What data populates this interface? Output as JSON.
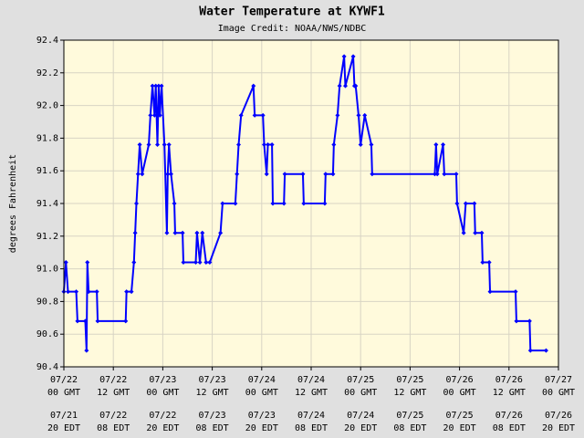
{
  "chart_data": {
    "type": "line",
    "title": "Water Temperature at KYWF1",
    "subtitle": "Image Credit: NOAA/NWS/NDBC",
    "y_label": "degrees Fahrenheit",
    "x": [
      0,
      0.5,
      1,
      3,
      3.3,
      5.2,
      5.5,
      5.7,
      6,
      8,
      8.2,
      15,
      15.2,
      16.4,
      17,
      17.3,
      17.6,
      18,
      18.4,
      19,
      20.6,
      21,
      21.5,
      22,
      22.3,
      22.7,
      23,
      23.3,
      23.7,
      24.4,
      25,
      25.2,
      25.5,
      26,
      26.8,
      27,
      28.8,
      29,
      32,
      32.3,
      33,
      33.6,
      34.5,
      35.4,
      38,
      38.5,
      41.6,
      42,
      42.4,
      43,
      46,
      46.3,
      48.3,
      48.6,
      49.2,
      49.5,
      50.5,
      50.7,
      53.4,
      53.6,
      58,
      58.2,
      63.3,
      63.5,
      65.3,
      65.5,
      66.4,
      66.9,
      68,
      68.3,
      70.2,
      70.5,
      70.8,
      71.5,
      72,
      73,
      74.6,
      74.8,
      90,
      90.3,
      90.6,
      92,
      92.3,
      95.2,
      95.4,
      97,
      97.5,
      99.6,
      99.8,
      101.4,
      101.6,
      103.2,
      103.4,
      109.6,
      109.8,
      113,
      113.2,
      117
    ],
    "series": [
      {
        "name": "Water Temperature",
        "color": "#0000ff",
        "values": [
          90.86,
          91.04,
          90.86,
          90.86,
          90.68,
          90.68,
          90.5,
          91.04,
          90.86,
          90.86,
          90.68,
          90.68,
          90.86,
          90.86,
          91.04,
          91.22,
          91.4,
          91.58,
          91.76,
          91.58,
          91.76,
          91.94,
          92.12,
          91.94,
          92.12,
          91.76,
          92.12,
          91.94,
          92.12,
          91.76,
          91.22,
          91.58,
          91.76,
          91.58,
          91.4,
          91.22,
          91.22,
          91.04,
          91.04,
          91.22,
          91.04,
          91.22,
          91.04,
          91.04,
          91.22,
          91.4,
          91.4,
          91.58,
          91.76,
          91.94,
          92.12,
          91.94,
          91.94,
          91.76,
          91.58,
          91.76,
          91.76,
          91.4,
          91.4,
          91.58,
          91.58,
          91.4,
          91.4,
          91.58,
          91.58,
          91.76,
          91.94,
          92.12,
          92.3,
          92.12,
          92.3,
          92.12,
          92.12,
          91.94,
          91.76,
          91.94,
          91.76,
          91.58,
          91.58,
          91.76,
          91.58,
          91.76,
          91.58,
          91.58,
          91.4,
          91.22,
          91.4,
          91.4,
          91.22,
          91.22,
          91.04,
          91.04,
          90.86,
          90.86,
          90.68,
          90.68,
          90.5,
          90.5
        ]
      }
    ],
    "xlim": [
      0,
      120
    ],
    "xticks": [
      {
        "value": 0,
        "label": [
          "07/22",
          "00 GMT"
        ]
      },
      {
        "value": 12,
        "label": [
          "07/22",
          "12 GMT"
        ]
      },
      {
        "value": 24,
        "label": [
          "07/23",
          "00 GMT"
        ]
      },
      {
        "value": 36,
        "label": [
          "07/23",
          "12 GMT"
        ]
      },
      {
        "value": 48,
        "label": [
          "07/24",
          "00 GMT"
        ]
      },
      {
        "value": 60,
        "label": [
          "07/24",
          "12 GMT"
        ]
      },
      {
        "value": 72,
        "label": [
          "07/25",
          "00 GMT"
        ]
      },
      {
        "value": 84,
        "label": [
          "07/25",
          "12 GMT"
        ]
      },
      {
        "value": 96,
        "label": [
          "07/26",
          "00 GMT"
        ]
      },
      {
        "value": 108,
        "label": [
          "07/26",
          "12 GMT"
        ]
      },
      {
        "value": 120,
        "label": [
          "07/27",
          "00 GMT"
        ]
      }
    ],
    "x2ticks": [
      {
        "value": 0,
        "label": [
          "07/21",
          "20 EDT"
        ]
      },
      {
        "value": 12,
        "label": [
          "07/22",
          "08 EDT"
        ]
      },
      {
        "value": 24,
        "label": [
          "07/22",
          "20 EDT"
        ]
      },
      {
        "value": 36,
        "label": [
          "07/23",
          "08 EDT"
        ]
      },
      {
        "value": 48,
        "label": [
          "07/23",
          "20 EDT"
        ]
      },
      {
        "value": 60,
        "label": [
          "07/24",
          "08 EDT"
        ]
      },
      {
        "value": 72,
        "label": [
          "07/24",
          "20 EDT"
        ]
      },
      {
        "value": 84,
        "label": [
          "07/25",
          "08 EDT"
        ]
      },
      {
        "value": 96,
        "label": [
          "07/25",
          "20 EDT"
        ]
      },
      {
        "value": 108,
        "label": [
          "07/26",
          "08 EDT"
        ]
      },
      {
        "value": 120,
        "label": [
          "07/26",
          "20 EDT"
        ]
      }
    ],
    "ylim": [
      90.4,
      92.4
    ],
    "yticks": [
      90.4,
      90.6,
      90.8,
      {
        "value": 91,
        "label": "91.0"
      },
      91.2,
      91.4,
      91.6,
      91.8,
      {
        "value": 92,
        "label": "92.0"
      },
      92.2,
      92.4
    ],
    "grid": true
  }
}
